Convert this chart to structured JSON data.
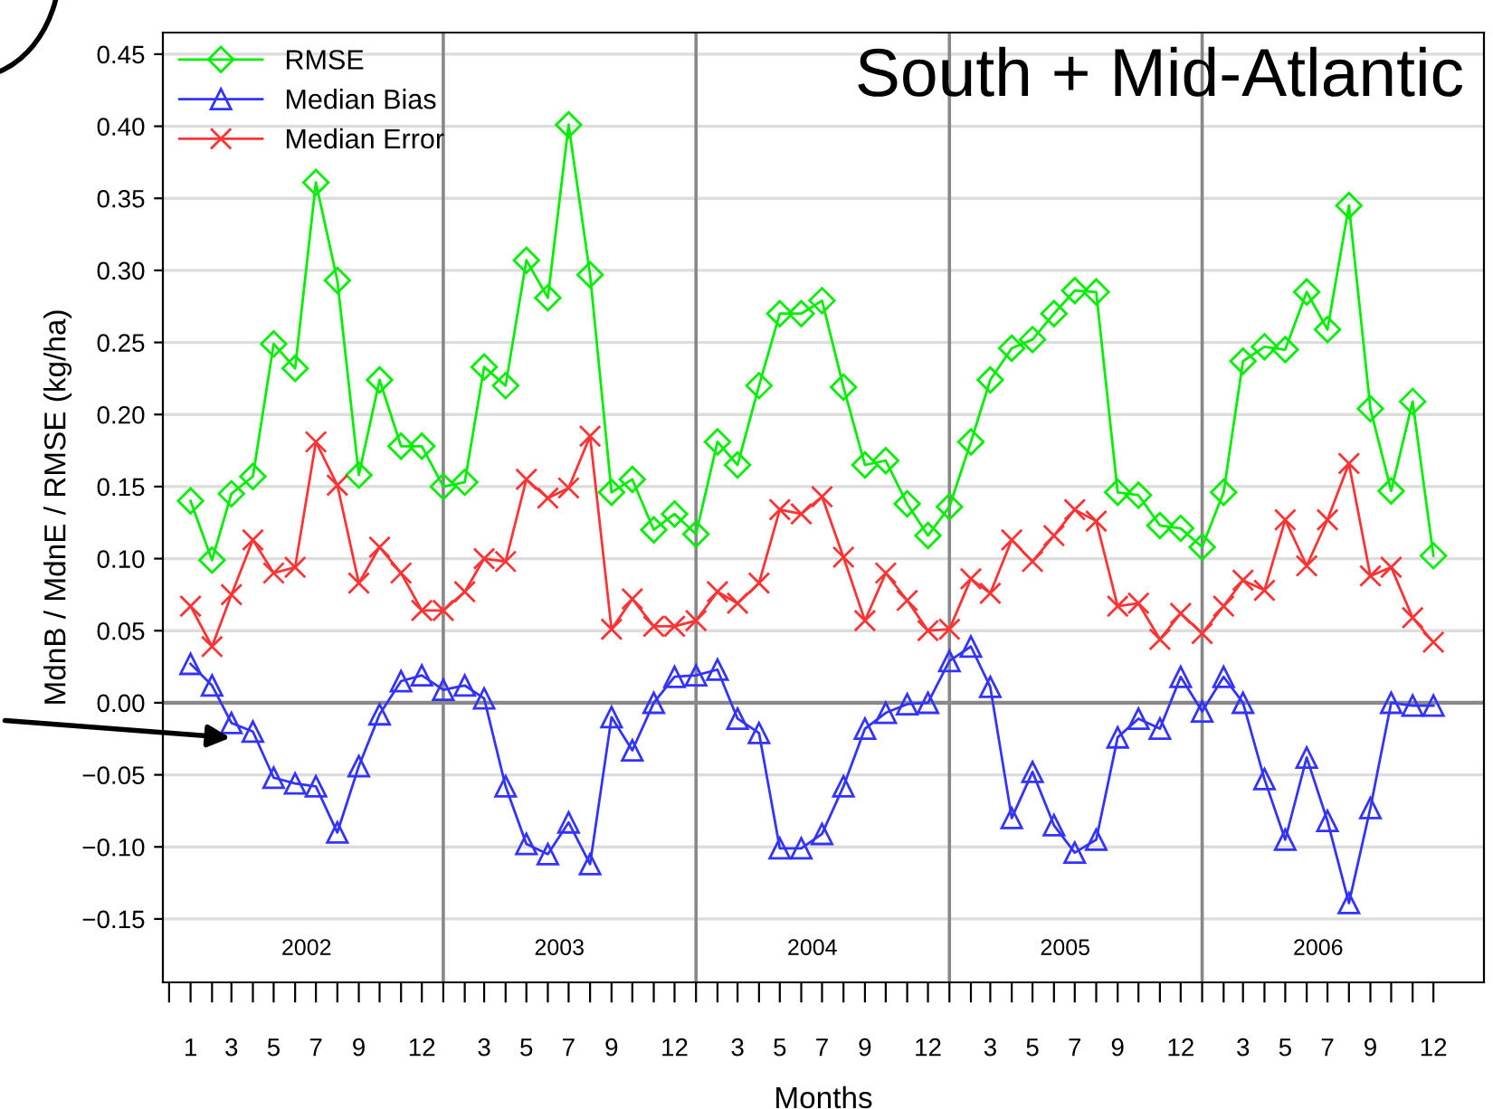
{
  "chart_data": {
    "type": "line",
    "title": "South + Mid-Atlantic",
    "xlabel": "Months",
    "ylabel": "MdnB / MdnE / RMSE (kg/ha)",
    "x": [
      "2002-01",
      "2002-02",
      "2002-03",
      "2002-04",
      "2002-05",
      "2002-06",
      "2002-07",
      "2002-08",
      "2002-09",
      "2002-10",
      "2002-11",
      "2002-12",
      "2003-01",
      "2003-02",
      "2003-03",
      "2003-04",
      "2003-05",
      "2003-06",
      "2003-07",
      "2003-08",
      "2003-09",
      "2003-10",
      "2003-11",
      "2003-12",
      "2004-01",
      "2004-02",
      "2004-03",
      "2004-04",
      "2004-05",
      "2004-06",
      "2004-07",
      "2004-08",
      "2004-09",
      "2004-10",
      "2004-11",
      "2004-12",
      "2005-01",
      "2005-02",
      "2005-03",
      "2005-04",
      "2005-05",
      "2005-06",
      "2005-07",
      "2005-08",
      "2005-09",
      "2005-10",
      "2005-11",
      "2005-12",
      "2006-01",
      "2006-02",
      "2006-03",
      "2006-04",
      "2006-05",
      "2006-06",
      "2006-07",
      "2006-08",
      "2006-09",
      "2006-10",
      "2006-11",
      "2006-12"
    ],
    "series": [
      {
        "name": "RMSE",
        "color": "#00ee00",
        "marker": "diamond",
        "values": [
          0.14,
          0.099,
          0.145,
          0.157,
          0.249,
          0.232,
          0.361,
          0.293,
          0.158,
          0.224,
          0.178,
          0.178,
          0.15,
          0.153,
          0.233,
          0.22,
          0.307,
          0.281,
          0.401,
          0.297,
          0.146,
          0.155,
          0.12,
          0.131,
          0.117,
          0.181,
          0.165,
          0.22,
          0.27,
          0.27,
          0.279,
          0.219,
          0.165,
          0.168,
          0.138,
          0.116,
          0.136,
          0.181,
          0.224,
          0.246,
          0.252,
          0.27,
          0.286,
          0.285,
          0.146,
          0.144,
          0.123,
          0.121,
          0.108,
          0.146,
          0.237,
          0.247,
          0.245,
          0.285,
          0.259,
          0.345,
          0.204,
          0.147,
          0.209,
          0.102
        ]
      },
      {
        "name": "Median Bias",
        "color": "#3333ff",
        "marker": "triangle",
        "values": [
          0.027,
          0.012,
          -0.014,
          -0.02,
          -0.052,
          -0.056,
          -0.058,
          -0.09,
          -0.044,
          -0.008,
          0.015,
          0.019,
          0.009,
          0.012,
          0.003,
          -0.058,
          -0.098,
          -0.105,
          -0.083,
          -0.112,
          -0.01,
          -0.033,
          0.0,
          0.018,
          0.019,
          0.023,
          -0.011,
          -0.021,
          -0.101,
          -0.101,
          -0.091,
          -0.058,
          -0.018,
          -0.007,
          -0.001,
          0.0,
          0.029,
          0.039,
          0.011,
          -0.08,
          -0.048,
          -0.085,
          -0.104,
          -0.095,
          -0.024,
          -0.011,
          -0.018,
          0.018,
          -0.006,
          0.018,
          0.0,
          -0.053,
          -0.095,
          -0.038,
          -0.082,
          -0.139,
          -0.073,
          0.0,
          -0.002,
          -0.002
        ]
      },
      {
        "name": "Median Error",
        "color": "#ff3333",
        "marker": "cross",
        "values": [
          0.067,
          0.039,
          0.075,
          0.113,
          0.09,
          0.094,
          0.181,
          0.151,
          0.083,
          0.108,
          0.09,
          0.064,
          0.064,
          0.077,
          0.1,
          0.098,
          0.155,
          0.142,
          0.149,
          0.185,
          0.051,
          0.072,
          0.053,
          0.053,
          0.057,
          0.077,
          0.069,
          0.083,
          0.134,
          0.131,
          0.143,
          0.101,
          0.057,
          0.09,
          0.071,
          0.05,
          0.051,
          0.086,
          0.076,
          0.113,
          0.098,
          0.116,
          0.134,
          0.126,
          0.067,
          0.069,
          0.044,
          0.062,
          0.048,
          0.067,
          0.085,
          0.078,
          0.127,
          0.095,
          0.127,
          0.166,
          0.088,
          0.094,
          0.059,
          0.042
        ]
      }
    ],
    "xlim": [
      "2001-11-22",
      "2007-02-12"
    ],
    "ylim": [
      -0.194,
      0.465
    ],
    "xticks": [
      {
        "value": "2001-12",
        "label": null
      },
      {
        "value": "2002-01",
        "label": "1"
      },
      {
        "value": "2002-02",
        "label": null
      },
      {
        "value": "2002-03",
        "label": "3"
      },
      {
        "value": "2002-04",
        "label": null
      },
      {
        "value": "2002-05",
        "label": "5"
      },
      {
        "value": "2002-06",
        "label": null
      },
      {
        "value": "2002-07",
        "label": "7"
      },
      {
        "value": "2002-08",
        "label": null
      },
      {
        "value": "2002-09",
        "label": "9"
      },
      {
        "value": "2002-10",
        "label": null
      },
      {
        "value": "2002-11",
        "label": null
      },
      {
        "value": "2002-12",
        "label": "12"
      },
      {
        "value": "2003-01",
        "label": null
      },
      {
        "value": "2003-02",
        "label": null
      },
      {
        "value": "2003-03",
        "label": "3"
      },
      {
        "value": "2003-04",
        "label": null
      },
      {
        "value": "2003-05",
        "label": "5"
      },
      {
        "value": "2003-06",
        "label": null
      },
      {
        "value": "2003-07",
        "label": "7"
      },
      {
        "value": "2003-08",
        "label": null
      },
      {
        "value": "2003-09",
        "label": "9"
      },
      {
        "value": "2003-10",
        "label": null
      },
      {
        "value": "2003-11",
        "label": null
      },
      {
        "value": "2003-12",
        "label": "12"
      },
      {
        "value": "2004-01",
        "label": null
      },
      {
        "value": "2004-02",
        "label": null
      },
      {
        "value": "2004-03",
        "label": "3"
      },
      {
        "value": "2004-04",
        "label": null
      },
      {
        "value": "2004-05",
        "label": "5"
      },
      {
        "value": "2004-06",
        "label": null
      },
      {
        "value": "2004-07",
        "label": "7"
      },
      {
        "value": "2004-08",
        "label": null
      },
      {
        "value": "2004-09",
        "label": "9"
      },
      {
        "value": "2004-10",
        "label": null
      },
      {
        "value": "2004-11",
        "label": null
      },
      {
        "value": "2004-12",
        "label": "12"
      },
      {
        "value": "2005-01",
        "label": null
      },
      {
        "value": "2005-02",
        "label": null
      },
      {
        "value": "2005-03",
        "label": "3"
      },
      {
        "value": "2005-04",
        "label": null
      },
      {
        "value": "2005-05",
        "label": "5"
      },
      {
        "value": "2005-06",
        "label": null
      },
      {
        "value": "2005-07",
        "label": "7"
      },
      {
        "value": "2005-08",
        "label": null
      },
      {
        "value": "2005-09",
        "label": "9"
      },
      {
        "value": "2005-10",
        "label": null
      },
      {
        "value": "2005-11",
        "label": null
      },
      {
        "value": "2005-12",
        "label": "12"
      },
      {
        "value": "2006-01",
        "label": null
      },
      {
        "value": "2006-02",
        "label": null
      },
      {
        "value": "2006-03",
        "label": "3"
      },
      {
        "value": "2006-04",
        "label": null
      },
      {
        "value": "2006-05",
        "label": "5"
      },
      {
        "value": "2006-06",
        "label": null
      },
      {
        "value": "2006-07",
        "label": "7"
      },
      {
        "value": "2006-08",
        "label": null
      },
      {
        "value": "2006-09",
        "label": "9"
      },
      {
        "value": "2006-10",
        "label": null
      },
      {
        "value": "2006-11",
        "label": null
      },
      {
        "value": "2006-12",
        "label": "12"
      }
    ],
    "yticks": [
      {
        "value": -0.15,
        "label": "−0.15"
      },
      {
        "value": -0.1,
        "label": "−0.10"
      },
      {
        "value": -0.05,
        "label": "−0.05"
      },
      {
        "value": 0,
        "label": "0.00"
      },
      {
        "value": 0.05,
        "label": "0.05"
      },
      {
        "value": 0.1,
        "label": "0.10"
      },
      {
        "value": 0.15,
        "label": "0.15"
      },
      {
        "value": 0.2,
        "label": "0.20"
      },
      {
        "value": 0.25,
        "label": "0.25"
      },
      {
        "value": 0.3,
        "label": "0.30"
      },
      {
        "value": 0.35,
        "label": "0.35"
      },
      {
        "value": 0.4,
        "label": "0.40"
      },
      {
        "value": 0.45,
        "label": "0.45"
      }
    ],
    "ref_lines": [
      {
        "axis": "y",
        "value": 0,
        "color": "#888888"
      },
      {
        "axis": "x",
        "value": "2003-01",
        "color": "#888888"
      },
      {
        "axis": "x",
        "value": "2004-01",
        "color": "#888888"
      },
      {
        "axis": "x",
        "value": "2005-01",
        "color": "#888888"
      },
      {
        "axis": "x",
        "value": "2006-01",
        "color": "#888888"
      }
    ],
    "annotations": [
      "2002",
      "2003",
      "2004",
      "2005",
      "2006"
    ],
    "grid": "y",
    "legend": "top left",
    "line_style": "solid"
  }
}
